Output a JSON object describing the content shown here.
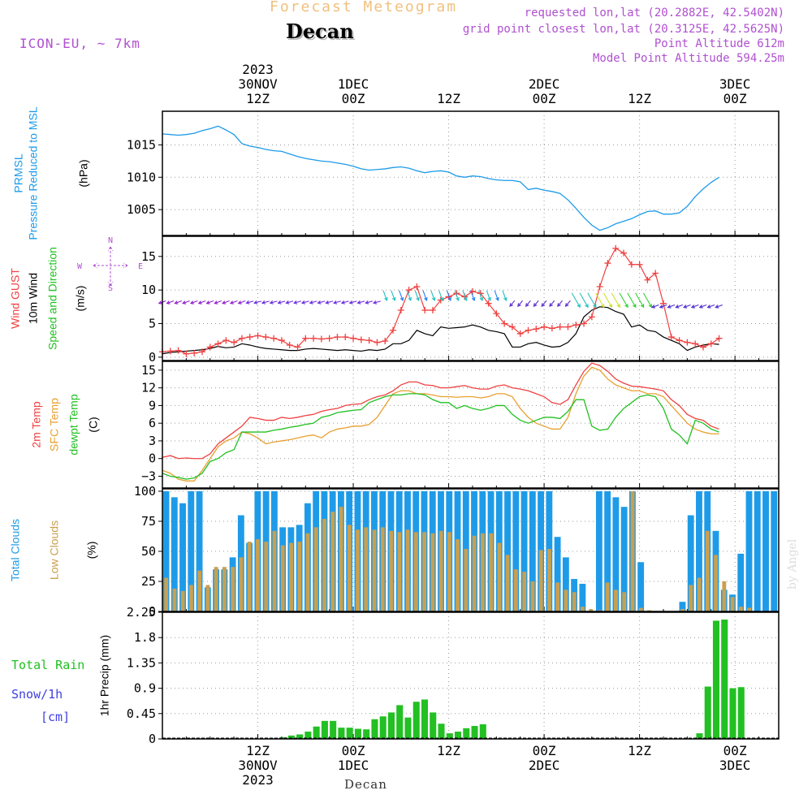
{
  "header": {
    "title": "Forecast Meteogram",
    "location": "Decan",
    "model": "ICON-EU, ~ 7km",
    "requested": "requested lon,lat (20.2882E, 42.5402N)",
    "grid_point": "grid point closest lon,lat (20.3125E, 42.5625N)",
    "point_altitude": "Point Altitude 612m",
    "model_altitude": "Model Point Altitude 594.25m",
    "footer_location": "Decan",
    "watermark": "by Angel"
  },
  "colors": {
    "pressure": "#1e9be8",
    "gust": "#f04040",
    "wind": "#000000",
    "temp2m": "#f04040",
    "sfc_temp": "#e8a030",
    "dewpt": "#22c022",
    "total_clouds": "#1e9be8",
    "low_clouds": "#c8a050",
    "rain": "#22c022",
    "snow": "#4040e0",
    "header_title": "#f0c080",
    "header_meta": "#b050d0"
  },
  "time_axis": {
    "top_labels": [
      {
        "h": 12,
        "lines": [
          "2023",
          "30NOV",
          "12Z"
        ]
      },
      {
        "h": 24,
        "lines": [
          "1DEC",
          "00Z"
        ]
      },
      {
        "h": 36,
        "lines": [
          "12Z"
        ]
      },
      {
        "h": 48,
        "lines": [
          "2DEC",
          "00Z"
        ]
      },
      {
        "h": 60,
        "lines": [
          "12Z"
        ]
      },
      {
        "h": 72,
        "lines": [
          "3DEC",
          "00Z"
        ]
      }
    ],
    "bottom_labels": [
      {
        "h": 12,
        "lines": [
          "12Z",
          "30NOV",
          "2023"
        ]
      },
      {
        "h": 24,
        "lines": [
          "00Z",
          "1DEC"
        ]
      },
      {
        "h": 36,
        "lines": [
          "12Z"
        ]
      },
      {
        "h": 48,
        "lines": [
          "00Z",
          "2DEC"
        ]
      },
      {
        "h": 60,
        "lines": [
          "12Z"
        ]
      },
      {
        "h": 72,
        "lines": [
          "00Z",
          "3DEC"
        ]
      }
    ]
  },
  "chart_data": [
    {
      "type": "line",
      "ylabel_lines": [
        {
          "text": "PRMSL",
          "color": "#1e9be8"
        },
        {
          "text": "Pressure Reduced to MSL",
          "color": "#1e9be8"
        },
        {
          "text": "(hPa)",
          "color": "#000000"
        }
      ],
      "ylim": [
        1001,
        1020.2
      ],
      "yticks": [
        1005,
        1010,
        1015
      ],
      "series": [
        {
          "values": [
            1016.7,
            1016.6,
            1016.5,
            1016.6,
            1016.8,
            1017.2,
            1017.5,
            1017.9,
            1017.3,
            1016.6,
            1015.2,
            1014.8,
            1014.6,
            1014.3,
            1014.1,
            1014.0,
            1013.6,
            1013.2,
            1012.9,
            1012.7,
            1012.5,
            1012.4,
            1012.2,
            1012.0,
            1011.7,
            1011.3,
            1011.1,
            1011.2,
            1011.3,
            1011.5,
            1011.6,
            1011.4,
            1011.0,
            1010.7,
            1010.9,
            1011.0,
            1010.8,
            1010.2,
            1010.0,
            1010.2,
            1010.1,
            1009.8,
            1009.6,
            1009.5,
            1009.5,
            1009.3,
            1008.1,
            1008.3,
            1008.0,
            1007.8,
            1007.5,
            1006.5,
            1005.2,
            1003.8,
            1002.6,
            1001.8,
            1002.2,
            1002.8,
            1003.2,
            1003.6,
            1004.2,
            1004.7,
            1004.8,
            1004.3,
            1004.3,
            1004.5,
            1005.5,
            1007.0,
            1008.2,
            1009.2,
            1010.0
          ]
        }
      ]
    },
    {
      "type": "line",
      "ylabel_lines": [
        {
          "text": "Wind GUST",
          "color": "#f04040"
        },
        {
          "text": "10m Wind",
          "color": "#000000"
        },
        {
          "text": "Speed and Direction",
          "color": "#22c022"
        },
        {
          "text": "(m/s)",
          "color": "#000000"
        }
      ],
      "compass": {
        "n": "N",
        "s": "S",
        "e": "E",
        "w": "W"
      },
      "ylim": [
        -0.5,
        18
      ],
      "yticks": [
        0,
        5,
        10,
        15
      ],
      "series": [
        {
          "name": "Wind GUST",
          "values": [
            0.8,
            0.9,
            1.0,
            0.5,
            0.6,
            0.8,
            1.5,
            2.0,
            2.5,
            2.2,
            2.8,
            3.0,
            3.2,
            3.0,
            2.8,
            2.5,
            1.8,
            1.5,
            2.8,
            2.8,
            2.7,
            2.8,
            3.0,
            3.0,
            2.8,
            2.6,
            2.5,
            2.2,
            2.4,
            4.0,
            7.0,
            10.0,
            10.5,
            7.0,
            7.0,
            8.5,
            9.0,
            9.5,
            9.0,
            9.8,
            9.5,
            8.0,
            6.5,
            5.0,
            4.5,
            3.5,
            4.0,
            4.2,
            4.5,
            4.3,
            4.5,
            4.5,
            4.8,
            5.0,
            6.0,
            10.5,
            14.0,
            16.2,
            15.5,
            13.8,
            13.8,
            11.5,
            12.5,
            8.0,
            3.0,
            2.5,
            2.2,
            2.0,
            1.5,
            2.0,
            2.8
          ]
        },
        {
          "name": "10m Wind",
          "values": [
            0.5,
            0.7,
            0.8,
            0.9,
            1.0,
            1.1,
            1.3,
            1.6,
            1.4,
            1.5,
            2.0,
            1.8,
            1.5,
            1.3,
            1.2,
            1.1,
            1.0,
            1.0,
            1.2,
            1.3,
            1.2,
            1.1,
            1.0,
            1.1,
            1.0,
            0.9,
            1.1,
            1.0,
            1.2,
            2.0,
            2.0,
            2.5,
            4.0,
            3.5,
            3.2,
            4.5,
            4.3,
            4.4,
            4.5,
            4.8,
            4.5,
            4.0,
            3.8,
            3.5,
            1.5,
            1.5,
            2.0,
            2.2,
            1.8,
            1.5,
            1.6,
            2.2,
            3.5,
            6.0,
            7.0,
            7.5,
            7.4,
            6.8,
            6.4,
            4.5,
            4.8,
            4.0,
            3.8,
            3.0,
            2.5,
            2.0,
            1.0,
            1.5,
            1.8,
            2.0,
            1.9
          ]
        }
      ]
    },
    {
      "type": "line",
      "ylabel_lines": [
        {
          "text": "2m Temp",
          "color": "#f04040"
        },
        {
          "text": "SFC Temp",
          "color": "#e8a030"
        },
        {
          "text": "dewpt Temp",
          "color": "#22c022"
        },
        {
          "text": "(C)",
          "color": "#000000"
        }
      ],
      "ylim": [
        -5,
        16.5
      ],
      "yticks": [
        -3,
        0,
        3,
        6,
        9,
        12,
        15
      ],
      "series": [
        {
          "name": "2m Temp",
          "values": [
            0.2,
            0.5,
            0.0,
            0.1,
            0.0,
            0.0,
            0.8,
            2.5,
            3.5,
            4.5,
            5.5,
            7.0,
            6.8,
            6.5,
            6.5,
            7.0,
            6.8,
            7.0,
            7.3,
            7.5,
            8.0,
            8.3,
            8.5,
            9.0,
            9.2,
            9.3,
            10.0,
            10.5,
            10.8,
            11.5,
            12.5,
            13.0,
            13.0,
            12.5,
            12.4,
            12.0,
            12.0,
            12.2,
            12.4,
            12.0,
            11.8,
            11.8,
            12.3,
            12.5,
            12.0,
            11.8,
            11.5,
            11.0,
            10.5,
            9.5,
            9.2,
            10.0,
            12.5,
            14.8,
            16.2,
            15.8,
            14.8,
            13.5,
            12.8,
            12.3,
            12.2,
            12.0,
            11.8,
            11.5,
            10.0,
            9.0,
            7.5,
            6.8,
            6.5,
            5.5,
            5.0
          ]
        },
        {
          "name": "SFC Temp",
          "values": [
            -2.0,
            -2.5,
            -3.5,
            -3.8,
            -3.8,
            -2.0,
            0.0,
            2.0,
            3.0,
            3.5,
            4.5,
            4.2,
            3.5,
            2.5,
            2.8,
            3.0,
            3.2,
            3.5,
            3.8,
            4.0,
            3.5,
            4.5,
            5.0,
            5.2,
            5.5,
            5.5,
            5.8,
            7.0,
            9.0,
            11.0,
            11.5,
            11.5,
            11.0,
            11.0,
            10.8,
            10.5,
            10.5,
            10.4,
            10.5,
            10.5,
            10.3,
            10.5,
            11.0,
            11.0,
            10.5,
            8.5,
            7.0,
            6.0,
            5.5,
            5.0,
            5.0,
            7.0,
            11.0,
            14.0,
            15.5,
            15.0,
            13.5,
            12.5,
            12.0,
            11.5,
            11.5,
            11.0,
            11.0,
            10.5,
            9.0,
            7.5,
            6.0,
            5.0,
            4.5,
            4.2,
            4.2
          ]
        },
        {
          "name": "dewpt Temp",
          "values": [
            -2.5,
            -3.0,
            -3.2,
            -3.5,
            -3.3,
            -2.5,
            -0.5,
            0.0,
            1.0,
            1.5,
            4.5,
            4.5,
            4.5,
            4.5,
            4.8,
            5.0,
            5.3,
            5.5,
            5.8,
            6.0,
            7.0,
            7.3,
            7.8,
            8.0,
            8.2,
            8.3,
            9.5,
            10.0,
            10.5,
            10.8,
            10.8,
            11.0,
            11.0,
            10.8,
            10.0,
            9.5,
            9.5,
            8.5,
            9.0,
            8.5,
            8.2,
            8.5,
            9.0,
            9.0,
            7.5,
            6.5,
            6.0,
            6.5,
            7.0,
            7.0,
            6.8,
            8.0,
            10.0,
            10.0,
            5.5,
            4.8,
            5.0,
            7.0,
            8.5,
            9.5,
            10.5,
            10.8,
            10.5,
            8.5,
            5.0,
            4.0,
            2.5,
            6.5,
            6.0,
            5.0,
            4.5
          ]
        }
      ]
    },
    {
      "type": "bar",
      "ylabel_lines": [
        {
          "text": "Total Clouds",
          "color": "#1e9be8"
        },
        {
          "text": "Low Clouds",
          "color": "#c8a050"
        },
        {
          "text": "(%)",
          "color": "#000000"
        }
      ],
      "ylim": [
        0,
        102
      ],
      "yticks": [
        0,
        25,
        50,
        75,
        100
      ],
      "series": [
        {
          "name": "Total Clouds",
          "values": [
            100,
            95,
            90,
            100,
            100,
            20,
            35,
            35,
            45,
            80,
            57,
            100,
            100,
            100,
            70,
            70,
            72,
            90,
            100,
            100,
            100,
            100,
            100,
            100,
            100,
            100,
            100,
            100,
            100,
            100,
            100,
            100,
            100,
            100,
            100,
            100,
            100,
            100,
            100,
            100,
            100,
            100,
            100,
            100,
            100,
            100,
            100,
            62,
            45,
            27,
            23,
            0,
            100,
            100,
            95,
            87,
            100,
            41,
            0,
            0,
            0,
            0,
            8,
            80,
            100,
            100,
            67,
            18,
            14,
            48,
            100,
            100,
            100,
            100
          ]
        },
        {
          "name": "Low Clouds",
          "values": [
            28,
            19,
            17,
            22,
            34,
            22,
            37,
            37,
            37,
            45,
            58,
            60,
            58,
            67,
            55,
            57,
            58,
            65,
            70,
            77,
            83,
            87,
            72,
            68,
            70,
            68,
            70,
            67,
            66,
            68,
            66,
            66,
            65,
            67,
            66,
            60,
            52,
            63,
            65,
            65,
            57,
            47,
            35,
            33,
            25,
            51,
            52,
            24,
            18,
            16,
            4,
            2,
            1,
            24,
            18,
            16,
            100,
            3,
            1,
            0,
            0,
            0,
            2,
            22,
            28,
            67,
            47,
            25,
            12,
            4,
            3,
            0,
            0,
            0
          ]
        }
      ]
    },
    {
      "type": "bar",
      "ylabel_lines": [
        {
          "text": "Total  Rain",
          "color": "#22c022"
        },
        {
          "text": "Snow/1h",
          "color": "#4040e0"
        },
        {
          "text": "[cm]",
          "color": "#4040e0"
        },
        {
          "text": "1hr Precip (mm)",
          "color": "#000000"
        }
      ],
      "ylim": [
        0,
        2.25
      ],
      "yticks": [
        0,
        0.45,
        0.9,
        1.35,
        1.8,
        2.25
      ],
      "series": [
        {
          "name": "Total Rain",
          "values": [
            0,
            0,
            0,
            0,
            0,
            0,
            0,
            0,
            0,
            0,
            0,
            0,
            0,
            0.01,
            0.03,
            0.06,
            0.08,
            0.13,
            0.22,
            0.32,
            0.32,
            0.2,
            0.2,
            0.18,
            0.17,
            0.35,
            0.4,
            0.47,
            0.6,
            0.38,
            0.66,
            0.7,
            0.47,
            0.27,
            0.1,
            0.13,
            0.19,
            0.23,
            0.26,
            0.01,
            0.01,
            0,
            0,
            0,
            0,
            0,
            0,
            0,
            0,
            0,
            0,
            0,
            0,
            0,
            0,
            0,
            0,
            0,
            0,
            0,
            0,
            0,
            0,
            0,
            0.1,
            0.93,
            2.1,
            2.12,
            0.9,
            0.92,
            0,
            0,
            0,
            0
          ]
        }
      ]
    }
  ]
}
